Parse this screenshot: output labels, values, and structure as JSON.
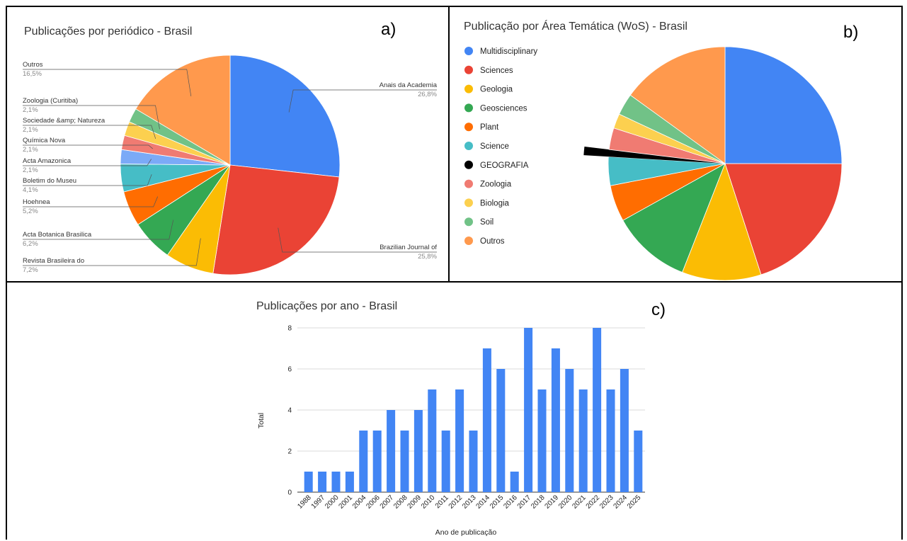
{
  "panels": {
    "a": {
      "letter": "a)",
      "title": "Publicações por periódico - Brasil"
    },
    "b": {
      "letter": "b)",
      "title": "Publicação por Área Temática (WoS) - Brasil"
    },
    "c": {
      "letter": "c)",
      "title": "Publicações por ano - Brasil"
    }
  },
  "chart_data": [
    {
      "type": "pie",
      "title": "Publicações por periódico - Brasil",
      "slices": [
        {
          "label": "Anais da Academia",
          "value": 26.8,
          "pct": "26,8%",
          "color": "#4285f4"
        },
        {
          "label": "Brazilian Journal of",
          "value": 25.8,
          "pct": "25,8%",
          "color": "#ea4335"
        },
        {
          "label": "Revista Brasileira do",
          "value": 7.2,
          "pct": "7,2%",
          "color": "#fbbc04"
        },
        {
          "label": "Acta Botanica Brasilica",
          "value": 6.2,
          "pct": "6,2%",
          "color": "#34a853"
        },
        {
          "label": "Hoehnea",
          "value": 5.2,
          "pct": "5,2%",
          "color": "#ff6d01"
        },
        {
          "label": "Boletim do Museu",
          "value": 4.1,
          "pct": "4,1%",
          "color": "#46bdc6"
        },
        {
          "label": "Acta Amazonica",
          "value": 2.1,
          "pct": "2,1%",
          "color": "#7baaf7"
        },
        {
          "label": "Química Nova",
          "value": 2.1,
          "pct": "2,1%",
          "color": "#f07b72"
        },
        {
          "label": "Sociedade &amp; Natureza",
          "value": 2.1,
          "pct": "2,1%",
          "color": "#fcd04f"
        },
        {
          "label": "Zoologia (Curitiba)",
          "value": 2.1,
          "pct": "2,1%",
          "color": "#71c287"
        },
        {
          "label": "Outros",
          "value": 16.5,
          "pct": "16,5%",
          "color": "#ff994d"
        }
      ]
    },
    {
      "type": "pie",
      "title": "Publicação por Área Temática (WoS) - Brasil",
      "legend": "left",
      "slices": [
        {
          "label": "Multidisciplinary",
          "value": 25.8,
          "color": "#4285f4"
        },
        {
          "label": "Sciences",
          "value": 20.6,
          "color": "#ea4335"
        },
        {
          "label": "Geologia",
          "value": 11.3,
          "color": "#fbbc04"
        },
        {
          "label": "Geosciences",
          "value": 11.3,
          "color": "#34a853"
        },
        {
          "label": "Plant",
          "value": 5.2,
          "color": "#ff6d01"
        },
        {
          "label": "Science",
          "value": 4.1,
          "color": "#46bdc6"
        },
        {
          "label": "GEOGRAFIA",
          "value": 1.0,
          "color": "#000000",
          "exploded": true
        },
        {
          "label": "Zoologia",
          "value": 3.1,
          "color": "#f07b72"
        },
        {
          "label": "Biologia",
          "value": 2.1,
          "color": "#fcd04f"
        },
        {
          "label": "Soil",
          "value": 3.1,
          "color": "#71c287"
        },
        {
          "label": "Outros",
          "value": 15.5,
          "color": "#ff994d"
        }
      ]
    },
    {
      "type": "bar",
      "title": "Publicações por ano - Brasil",
      "xlabel": "Ano de publicação",
      "ylabel": "Total",
      "ylim": [
        0,
        8
      ],
      "yticks": [
        0,
        2,
        4,
        6,
        8
      ],
      "grid": true,
      "color": "#4285f4",
      "categories": [
        "1988",
        "1997",
        "2000",
        "2001",
        "2004",
        "2006",
        "2007",
        "2008",
        "2009",
        "2010",
        "2011",
        "2012",
        "2013",
        "2014",
        "2015",
        "2016",
        "2017",
        "2018",
        "2019",
        "2020",
        "2021",
        "2022",
        "2023",
        "2024",
        "2025"
      ],
      "values": [
        1,
        1,
        1,
        1,
        3,
        3,
        4,
        3,
        4,
        5,
        3,
        5,
        3,
        7,
        6,
        1,
        8,
        5,
        7,
        6,
        5,
        8,
        5,
        6,
        3
      ]
    }
  ]
}
